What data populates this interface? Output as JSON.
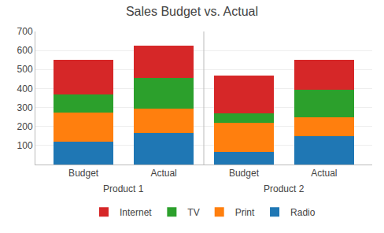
{
  "chart_data": {
    "type": "bar",
    "title": "Sales Budget vs. Actual",
    "categories": [
      "Budget",
      "Actual",
      "Budget",
      "Actual"
    ],
    "group_labels": [
      "Product 1",
      "Product 2"
    ],
    "series": [
      {
        "name": "Radio",
        "values": [
          120,
          165,
          65,
          150
        ]
      },
      {
        "name": "Print",
        "values": [
          155,
          130,
          155,
          100
        ]
      },
      {
        "name": "TV",
        "values": [
          95,
          160,
          50,
          145
        ]
      },
      {
        "name": "Internet",
        "values": [
          180,
          170,
          200,
          155
        ]
      }
    ],
    "stacked": true,
    "ylim": [
      0,
      700
    ],
    "yticks": [
      100,
      200,
      300,
      400,
      500,
      600,
      700
    ],
    "grid": true,
    "legend": "bottom"
  }
}
